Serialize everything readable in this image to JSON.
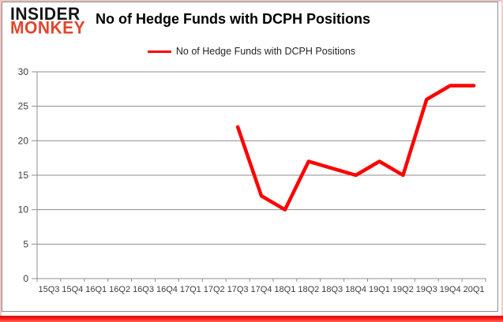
{
  "logo": {
    "top": "INSIDER",
    "bottom": "MONKEY"
  },
  "header": {
    "title": "No of Hedge Funds with DCPH Positions"
  },
  "legend": {
    "label": "No of Hedge Funds with DCPH Positions"
  },
  "colors": {
    "line": "#fe0000",
    "logo_red": "#e2452c",
    "grid": "#8d8d8d",
    "axis": "#8d8d8d",
    "tick_label": "#3d3d3d",
    "bottom_strip": "#fa0f0f"
  },
  "chart_data": {
    "type": "line",
    "title": "No of Hedge Funds with DCPH Positions",
    "categories": [
      "15Q3",
      "15Q4",
      "16Q1",
      "16Q2",
      "16Q3",
      "16Q4",
      "17Q1",
      "17Q2",
      "17Q3",
      "17Q4",
      "18Q1",
      "18Q2",
      "18Q3",
      "18Q4",
      "19Q1",
      "19Q2",
      "19Q3",
      "19Q4",
      "20Q1"
    ],
    "series": [
      {
        "name": "No of Hedge Funds with DCPH Positions",
        "color": "#fe0000",
        "values": [
          null,
          null,
          null,
          null,
          null,
          null,
          null,
          null,
          22,
          12,
          10,
          17,
          16,
          15,
          17,
          15,
          26,
          28,
          28
        ]
      }
    ],
    "xlabel": "",
    "ylabel": "",
    "ylim": [
      0,
      30
    ],
    "ytick_interval": 5,
    "grid": true,
    "legend_position": "top"
  }
}
